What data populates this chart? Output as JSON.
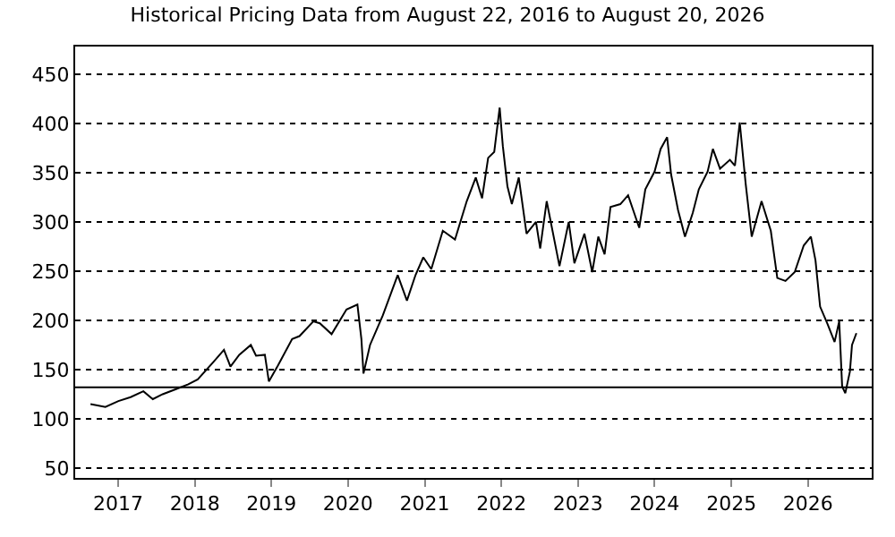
{
  "chart_data": {
    "type": "line",
    "title": "Historical Pricing Data from August 22, 2016 to August 20, 2026",
    "x": [
      "2016-08-22",
      "2016-11-01",
      "2017-01-02",
      "2017-03-01",
      "2017-05-01",
      "2017-06-15",
      "2017-08-01",
      "2017-10-01",
      "2017-12-01",
      "2018-01-15",
      "2018-04-01",
      "2018-05-20",
      "2018-06-20",
      "2018-08-01",
      "2018-09-25",
      "2018-10-20",
      "2018-12-01",
      "2018-12-20",
      "2019-02-01",
      "2019-04-10",
      "2019-05-15",
      "2019-07-20",
      "2019-08-20",
      "2019-10-15",
      "2019-12-25",
      "2020-02-15",
      "2020-03-05",
      "2020-03-15",
      "2020-04-15",
      "2020-06-15",
      "2020-08-25",
      "2020-10-08",
      "2020-11-18",
      "2020-12-25",
      "2021-02-01",
      "2021-03-28",
      "2021-05-25",
      "2021-07-20",
      "2021-09-01",
      "2021-10-01",
      "2021-10-30",
      "2021-11-28",
      "2021-12-24",
      "2022-01-08",
      "2022-01-30",
      "2022-02-20",
      "2022-03-25",
      "2022-05-01",
      "2022-06-15",
      "2022-07-05",
      "2022-08-05",
      "2022-10-05",
      "2022-11-18",
      "2022-12-15",
      "2023-02-01",
      "2023-03-10",
      "2023-04-08",
      "2023-05-08",
      "2023-06-05",
      "2023-07-22",
      "2023-08-28",
      "2023-10-20",
      "2023-11-18",
      "2024-01-01",
      "2024-01-30",
      "2024-03-01",
      "2024-03-20",
      "2024-04-22",
      "2024-05-25",
      "2024-07-01",
      "2024-07-30",
      "2024-09-10",
      "2024-10-05",
      "2024-11-08",
      "2024-12-25",
      "2025-01-18",
      "2025-02-10",
      "2025-03-10",
      "2025-04-08",
      "2025-05-25",
      "2025-07-08",
      "2025-08-08",
      "2025-09-16",
      "2025-10-30",
      "2025-12-12",
      "2026-01-15",
      "2026-02-06",
      "2026-02-28",
      "2026-04-05",
      "2026-05-08",
      "2026-05-30",
      "2026-06-13",
      "2026-06-28",
      "2026-07-20",
      "2026-07-30",
      "2026-08-20"
    ],
    "series": [
      {
        "color": "#000000",
        "values": [
          115,
          112,
          118,
          122,
          128,
          120,
          125,
          130,
          135,
          140,
          158,
          170,
          153,
          165,
          175,
          164,
          165,
          138,
          154,
          181,
          184,
          199,
          197,
          186,
          211,
          216,
          181,
          146,
          175,
          205,
          246,
          220,
          246,
          264,
          252,
          291,
          282,
          321,
          345,
          324,
          365,
          371,
          416,
          377,
          336,
          318,
          345,
          288,
          300,
          273,
          321,
          255,
          300,
          258,
          288,
          249,
          285,
          267,
          315,
          318,
          327,
          294,
          333,
          351,
          374,
          386,
          348,
          312,
          285,
          309,
          333,
          351,
          374,
          354,
          363,
          357,
          401,
          339,
          285,
          321,
          291,
          243,
          240,
          249,
          276,
          285,
          261,
          214,
          196,
          178,
          199,
          133,
          126,
          148,
          175,
          187
        ]
      }
    ],
    "xlim": [
      "2016-06-10",
      "2026-11-01"
    ],
    "xticks": [
      {
        "value": "2017-01-01",
        "label": "2017"
      },
      {
        "value": "2018-01-01",
        "label": "2018"
      },
      {
        "value": "2019-01-01",
        "label": "2019"
      },
      {
        "value": "2020-01-01",
        "label": "2020"
      },
      {
        "value": "2021-01-01",
        "label": "2021"
      },
      {
        "value": "2022-01-01",
        "label": "2022"
      },
      {
        "value": "2023-01-01",
        "label": "2023"
      },
      {
        "value": "2024-01-01",
        "label": "2024"
      },
      {
        "value": "2025-01-01",
        "label": "2025"
      },
      {
        "value": "2026-01-01",
        "label": "2026"
      }
    ],
    "ylim": [
      40,
      478
    ],
    "yticks": [
      50,
      100,
      150,
      200,
      250,
      300,
      350,
      400,
      450
    ],
    "ref_lines": [
      {
        "axis": "y",
        "value": 132,
        "color": "#000000",
        "line_style": "solid"
      }
    ],
    "grid": "y",
    "marker": "none",
    "line_style": "solid"
  }
}
